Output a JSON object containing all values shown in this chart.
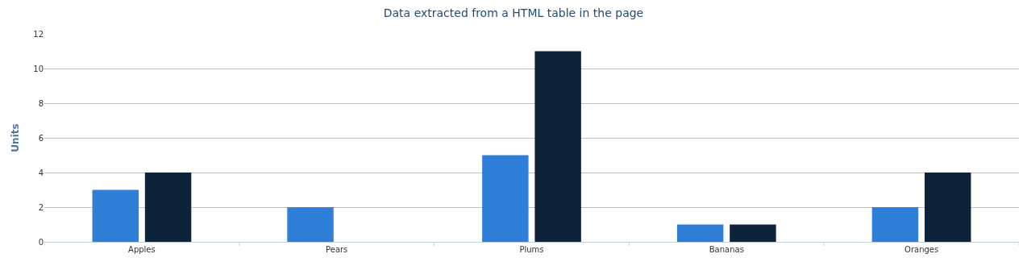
{
  "chart_data": {
    "type": "bar",
    "title": "Data extracted from a HTML table in the page",
    "ylabel": "Units",
    "categories": [
      "Apples",
      "Pears",
      "Plums",
      "Bananas",
      "Oranges"
    ],
    "series": [
      {
        "color": "#2f7ed8",
        "values": [
          3,
          2,
          5,
          1,
          2
        ]
      },
      {
        "color": "#0d233a",
        "values": [
          4,
          0,
          11,
          1,
          4
        ]
      }
    ],
    "ylim": [
      0,
      12
    ],
    "yticks": [
      0,
      2,
      4,
      6,
      8,
      10,
      12
    ],
    "grid": "y"
  }
}
